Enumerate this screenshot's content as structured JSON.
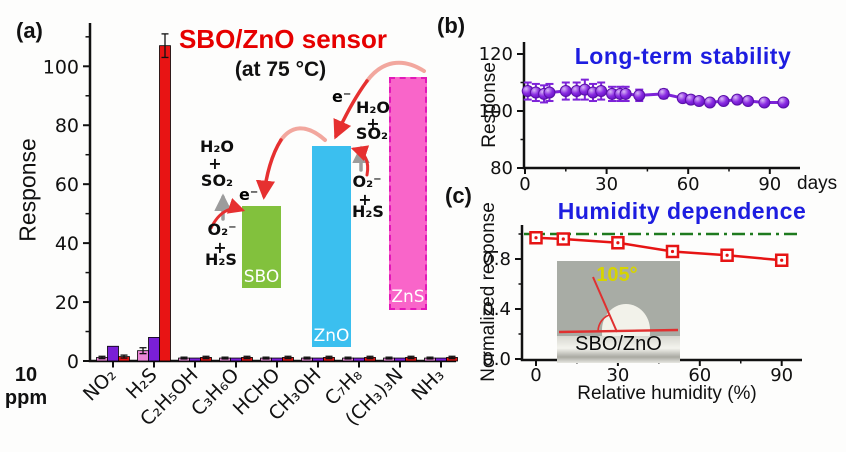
{
  "figure": {
    "background": "#ffffff"
  },
  "panels": {
    "a": {
      "label": "(a)",
      "title": "SBO/ZnO sensor",
      "subtitle": "(at 75 °C)",
      "ylabel": "Response",
      "conc_line1": "10",
      "conc_line2": "ppm",
      "colors": {
        "title": "#e60000",
        "bar_pink": "#ea86d7",
        "bar_violet": "#7a1fd6",
        "bar_red": "#e81414"
      },
      "inset": {
        "boxes": [
          {
            "label": "SBO",
            "color": "#82c13d"
          },
          {
            "label": "ZnO",
            "color": "#3bbfef"
          },
          {
            "label": "ZnS",
            "color": "#f965c9",
            "border": "#e218b8"
          }
        ],
        "left_labels": {
          "h2o": "H₂O",
          "plus1": "+",
          "so2": "SO₂",
          "electron": "e⁻",
          "o2": "O₂⁻",
          "plus2": "+",
          "h2s": "H₂S"
        },
        "right_labels": {
          "electron": "e⁻",
          "h2o": "H₂O",
          "plus1": "+",
          "so2": "SO₂",
          "o2": "O₂⁻",
          "plus2": "+",
          "h2s": "H₂S"
        }
      }
    },
    "b": {
      "label": "(b)",
      "title": "Long-term stability",
      "ylabel": "Response",
      "xunit": "days",
      "title_color": "#1d1de0",
      "point_color": "#8a2be2"
    },
    "c": {
      "label": "(c)",
      "title": "Humidity dependence",
      "ylabel": "Normalized response",
      "xlabel": "Relative humidity (%)",
      "title_color": "#1d1de0",
      "line_color": "#e61414",
      "ref_color": "#1e7a1e",
      "inset": {
        "angle_label": "105°",
        "sample_label": "SBO/ZnO"
      }
    }
  },
  "chart_data": [
    {
      "type": "bar",
      "panel": "a",
      "title": "SBO/ZnO sensor",
      "subtitle": "(at 75 °C)",
      "ylabel": "Response",
      "concentration": "10 ppm",
      "categories": [
        "NO₂",
        "H₂S",
        "C₂H₅OH",
        "C₃H₆O",
        "HCHO",
        "CH₃OH",
        "C₇H₈",
        "(CH₃)₃N",
        "NH₃"
      ],
      "series": [
        {
          "name": "pink",
          "color": "#ea86d7",
          "values": [
            1.2,
            3.5,
            1.0,
            1.0,
            1.0,
            1.0,
            1.0,
            1.0,
            1.0
          ],
          "errors": [
            0.4,
            1.0,
            0.3,
            0.3,
            0.3,
            0.3,
            0.3,
            0.3,
            0.3
          ]
        },
        {
          "name": "violet",
          "color": "#7a1fd6",
          "values": [
            5.0,
            8.0,
            1.0,
            1.0,
            1.0,
            1.0,
            1.0,
            1.0,
            1.0
          ],
          "errors": [
            0,
            0,
            0,
            0,
            0,
            0,
            0,
            0,
            0
          ]
        },
        {
          "name": "red",
          "color": "#e81414",
          "values": [
            1.5,
            107,
            1.2,
            1.2,
            1.2,
            1.2,
            1.2,
            1.2,
            1.2
          ],
          "errors": [
            0.5,
            4,
            0.4,
            0.4,
            0.4,
            0.4,
            0.4,
            0.4,
            0.4
          ]
        }
      ],
      "yticks": [
        0,
        20,
        40,
        60,
        80,
        100
      ],
      "ylim": [
        0,
        115
      ],
      "grid": false
    },
    {
      "type": "line",
      "panel": "b",
      "title": "Long-term stability",
      "ylabel": "Response",
      "xlabel": "days",
      "x": [
        1,
        4,
        7,
        9,
        15,
        19,
        22,
        25,
        28,
        32,
        35,
        37,
        42,
        51,
        58,
        61,
        64,
        68,
        73,
        78,
        82,
        88,
        95
      ],
      "y": [
        107,
        106.5,
        106,
        106.5,
        107,
        107,
        107.5,
        106.5,
        107,
        106,
        106,
        106,
        105.5,
        106,
        104.5,
        104,
        103.5,
        103,
        103.5,
        104,
        103.5,
        103,
        103
      ],
      "yerr": [
        3,
        3,
        3,
        3,
        3,
        3,
        3.5,
        3,
        3,
        2.5,
        2.5,
        2.5,
        2,
        1.5,
        0,
        0,
        0,
        0,
        0,
        0,
        0,
        0,
        0
      ],
      "xticks": [
        0,
        30,
        60,
        90
      ],
      "xminor": [
        15,
        45,
        75
      ],
      "yticks": [
        80,
        100,
        120
      ],
      "yminor": [
        90,
        110
      ],
      "ylim": [
        80,
        125
      ],
      "xlim": [
        0,
        97
      ],
      "grid": false
    },
    {
      "type": "line",
      "panel": "c",
      "title": "Humidity dependence",
      "ylabel": "Normalized response",
      "xlabel": "Relative humidity (%)",
      "x": [
        0,
        10,
        30,
        50,
        70,
        90
      ],
      "y": [
        0.97,
        0.96,
        0.93,
        0.86,
        0.83,
        0.79
      ],
      "reference_line": 1.0,
      "xticks": [
        0,
        30,
        60,
        90
      ],
      "xminor": [
        15,
        45,
        75
      ],
      "yticks": [
        "0.0",
        "0.4",
        "0.8"
      ],
      "ytick_values": [
        0,
        0.4,
        0.8
      ],
      "yminor": [
        0.2,
        0.6,
        1.0
      ],
      "ylim": [
        0,
        1.05
      ],
      "xlim": [
        -5,
        95
      ],
      "grid": false
    }
  ]
}
